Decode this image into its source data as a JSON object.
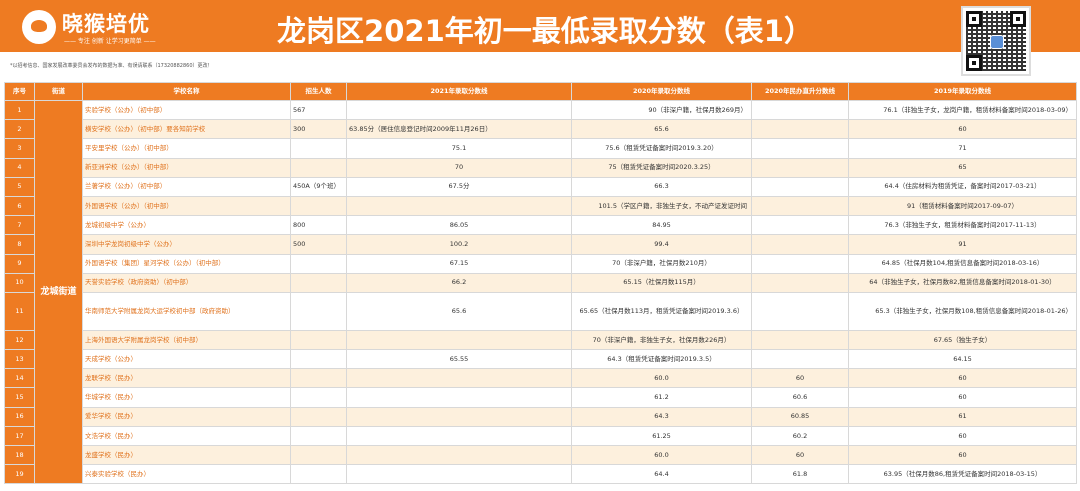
{
  "brand": {
    "name": "晓猴培优",
    "slogan": "—— 专注 创新 让学习更简单 ——"
  },
  "title": "龙岗区2021年初一最低录取分数（表1）",
  "note": "*以招考信息、国家发展改革委员会发布的数据为准、有误请联系（17320882860）更改！",
  "table": {
    "headers": [
      "序号",
      "街道",
      "学校名称",
      "招生人数",
      "2021年录取分数线",
      "2020年录取分数线",
      "2020年民办直升分数线",
      "2019年录取分数线"
    ],
    "street": "龙城街道",
    "rows": [
      {
        "no": "1",
        "school": "实验学校（公办）（初中部）",
        "quota": "567",
        "s2021": "",
        "s2020": "90（非深户籍，社保月数269月）",
        "s2020p": "",
        "s2019": "76.1（非独生子女，龙岗户籍，租赁材料备案时间2018-03-09）"
      },
      {
        "no": "2",
        "school": "横安学校（公办）（初中部）要各知前学校",
        "quota": "300",
        "s2021": "63.85分（居住信息登记时间2009年11月26日）",
        "s2020": "65.6",
        "s2020p": "",
        "s2019": "60"
      },
      {
        "no": "3",
        "school": "平安里学校（公办）（初中部）",
        "quota": "",
        "s2021": "75.1",
        "s2020": "75.6（租赁凭证备案时间2019.3.20）",
        "s2020p": "",
        "s2019": "71"
      },
      {
        "no": "4",
        "school": "新亚洲学校（公办）（初中部）",
        "quota": "",
        "s2021": "70",
        "s2020": "75（租赁凭证备案时间2020.3.25）",
        "s2020p": "",
        "s2019": "65"
      },
      {
        "no": "5",
        "school": "兰著学校（公办）（初中部）",
        "quota": "450A（9个班）",
        "s2021": "67.5分",
        "s2020": "66.3",
        "s2020p": "",
        "s2019": "64.4（住房材料为租赁凭证，备案时间2017-03-21）"
      },
      {
        "no": "6",
        "school": "外国语学校（公办）（初中部）",
        "quota": "",
        "s2021": "",
        "s2020": "101.5（学区户籍，非独生子女，不动产证发证时间",
        "s2020p": "",
        "s2019": "91（租赁材料备案时间2017-09-07）"
      },
      {
        "no": "7",
        "school": "龙城初级中学（公办）",
        "quota": "800",
        "s2021": "86.05",
        "s2020": "84.95",
        "s2020p": "",
        "s2019": "76.3（非独生子女，租赁材料备案时间2017-11-13）"
      },
      {
        "no": "8",
        "school": "深圳中学龙岗初级中学（公办）",
        "quota": "500",
        "s2021": "100.2",
        "s2020": "99.4",
        "s2020p": "",
        "s2019": "91"
      },
      {
        "no": "9",
        "school": "外国语学校（集团）星河学校（公办）（初中部）",
        "quota": "",
        "s2021": "67.15",
        "s2020": "70（非深户籍，社保月数210月）",
        "s2020p": "",
        "s2019": "64.85（社保月数104,租赁信息备案时间2018-03-16）"
      },
      {
        "no": "10",
        "school": "天誉实验学校（政府资助）（初中部）",
        "quota": "",
        "s2021": "66.2",
        "s2020": "65.15（社保月数115月）",
        "s2020p": "",
        "s2019": "64（非独生子女，社保月数82,租赁信息备案时间2018-01-30）"
      },
      {
        "no": "11",
        "school": "华南师范大学附属龙岗大运学校初中部（政府资助）",
        "quota": "",
        "s2021": "65.6",
        "s2020": "65.65（社保月数113月，租赁凭证备案时间2019.3.6）",
        "s2020p": "",
        "s2019": "65.3（非独生子女，社保月数108,租赁信息备案时间2018-01-26）"
      },
      {
        "no": "12",
        "school": "上海外国语大学附属龙岗学校（初中部）",
        "quota": "",
        "s2021": "",
        "s2020": "70（非深户籍，非独生子女，社保月数226月）",
        "s2020p": "",
        "s2019": "67.65（独生子女）"
      },
      {
        "no": "13",
        "school": "天成学校（公办）",
        "quota": "",
        "s2021": "65.55",
        "s2020": "64.3（租赁凭证备案时间2019.3.5）",
        "s2020p": "",
        "s2019": "64.15"
      },
      {
        "no": "14",
        "school": "龙联学校（民办）",
        "quota": "",
        "s2021": "",
        "s2020": "60.0",
        "s2020p": "60",
        "s2019": "60"
      },
      {
        "no": "15",
        "school": "华城学校（民办）",
        "quota": "",
        "s2021": "",
        "s2020": "61.2",
        "s2020p": "60.6",
        "s2019": "60"
      },
      {
        "no": "16",
        "school": "爱华学校（民办）",
        "quota": "",
        "s2021": "",
        "s2020": "64.3",
        "s2020p": "60.85",
        "s2019": "61"
      },
      {
        "no": "17",
        "school": "文浩学校（民办）",
        "quota": "",
        "s2021": "",
        "s2020": "61.25",
        "s2020p": "60.2",
        "s2019": "60"
      },
      {
        "no": "18",
        "school": "龙盛学校（民办）",
        "quota": "",
        "s2021": "",
        "s2020": "60.0",
        "s2020p": "60",
        "s2019": "60"
      },
      {
        "no": "19",
        "school": "兴泰实验学校（民办）",
        "quota": "",
        "s2021": "",
        "s2020": "64.4",
        "s2020p": "61.8",
        "s2019": "63.95（社保月数86,租赁凭证备案时间2018-03-15）"
      }
    ]
  },
  "colors": {
    "accent": "#ee7b22",
    "row_alt": "#fdf0dd",
    "school_text": "#e0721d"
  }
}
